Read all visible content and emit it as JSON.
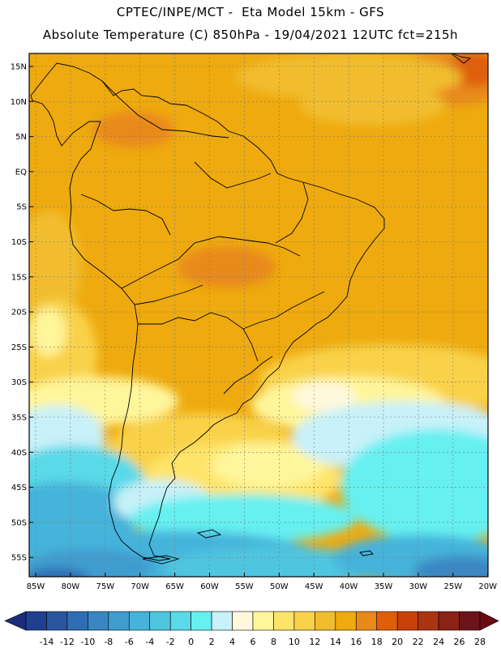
{
  "header": {
    "line1": "CPTEC/INPE/MCT -  Eta Model 15km - GFS",
    "line2": "Absolute Temperature (C) 850hPa - 19/04/2021 12UTC fct=215h"
  },
  "map": {
    "lat_labels": [
      "15N",
      "10N",
      "5N",
      "EQ",
      "5S",
      "10S",
      "15S",
      "20S",
      "25S",
      "30S",
      "35S",
      "40S",
      "45S",
      "50S",
      "55S"
    ],
    "lon_labels": [
      "85W",
      "80W",
      "75W",
      "70W",
      "65W",
      "60W",
      "55W",
      "50W",
      "45W",
      "40W",
      "35W",
      "30W",
      "25W",
      "20W"
    ]
  },
  "colorbar": {
    "labels": [
      "-14",
      "-12",
      "-10",
      "-8",
      "-6",
      "-4",
      "-2",
      "0",
      "2",
      "4",
      "6",
      "8",
      "10",
      "12",
      "14",
      "16",
      "18",
      "20",
      "22",
      "24",
      "26",
      "28"
    ],
    "colors": [
      "#1f3f8f",
      "#2a56a0",
      "#2f6db3",
      "#3a86c3",
      "#3f9ccf",
      "#45b3da",
      "#4fc6e0",
      "#5ad9e8",
      "#66f0f0",
      "#c8f1f9",
      "#fff8dc",
      "#fff59a",
      "#ffe46a",
      "#f9d24a",
      "#f1bd2e",
      "#eeaa0e",
      "#e8891a",
      "#df5e0a",
      "#c8400a",
      "#a93412",
      "#8a2218",
      "#6c1519"
    ],
    "low_cap_color": "#1b2c7a",
    "high_cap_color": "#6c0a14"
  }
}
